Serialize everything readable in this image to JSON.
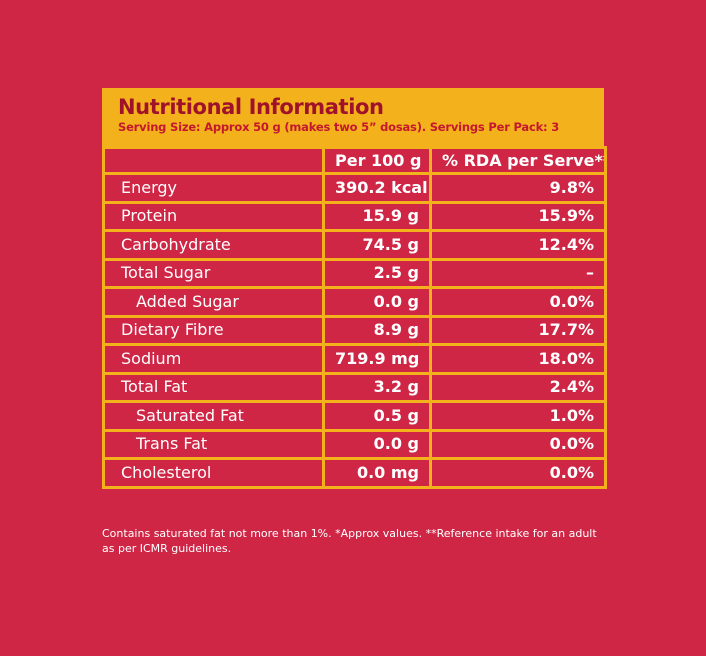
{
  "panel": {
    "title": "Nutritional Information",
    "subtitle": "Serving Size: Approx 50 g (makes two 5” dosas). Servings Per Pack: 3",
    "header_color": "#f3b21b",
    "background_color": "#cf2646"
  },
  "table": {
    "columns": [
      "",
      "Per 100 g",
      "% RDA per Serve**"
    ],
    "rows": [
      {
        "name": "Energy",
        "per_100g": "390.2 kcal",
        "rda": "9.8%"
      },
      {
        "name": "Protein",
        "per_100g": "15.9 g",
        "rda": "15.9%"
      },
      {
        "name": "Carbohydrate",
        "per_100g": "74.5 g",
        "rda": "12.4%"
      },
      {
        "name": "Total Sugar",
        "per_100g": "2.5 g",
        "rda": "–"
      },
      {
        "name": "Added Sugar",
        "per_100g": "0.0 g",
        "rda": "0.0%"
      },
      {
        "name": "Dietary Fibre",
        "per_100g": "8.9 g",
        "rda": "17.7%"
      },
      {
        "name": "Sodium",
        "per_100g": "719.9 mg",
        "rda": "18.0%"
      },
      {
        "name": "Total Fat",
        "per_100g": "3.2 g",
        "rda": "2.4%"
      },
      {
        "name": "Saturated Fat",
        "per_100g": "0.5 g",
        "rda": "1.0%"
      },
      {
        "name": "Trans Fat",
        "per_100g": "0.0 g",
        "rda": "0.0%"
      },
      {
        "name": "Cholesterol",
        "per_100g": "0.0 mg",
        "rda": "0.0%"
      }
    ]
  },
  "footnote": "Contains saturated fat not more than 1%. *Approx values. **Reference intake for an adult as per ICMR guidelines."
}
